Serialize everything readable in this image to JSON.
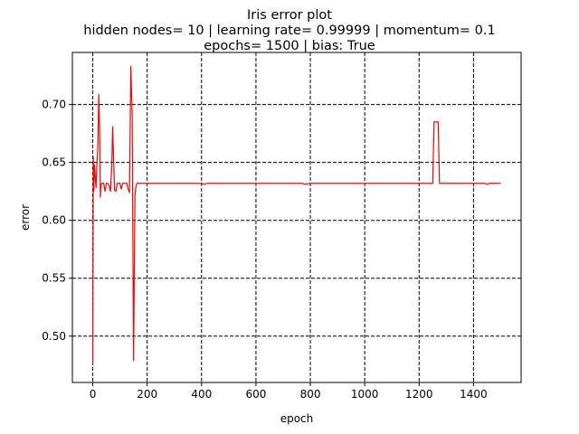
{
  "chart_data": {
    "type": "line",
    "title_lines": [
      "Iris error plot",
      "hidden nodes= 10 | learning rate= 0.99999 | momentum= 0.1",
      "epochs= 1500 | bias: True"
    ],
    "xlabel": "epoch",
    "ylabel": "error",
    "xlim": [
      -75,
      1575
    ],
    "ylim": [
      0.46,
      0.745
    ],
    "xticks": [
      0,
      200,
      400,
      600,
      800,
      1000,
      1200,
      1400
    ],
    "yticks": [
      0.5,
      0.55,
      0.6,
      0.65,
      0.7
    ],
    "ytick_labels": [
      "0.50",
      "0.55",
      "0.60",
      "0.65",
      "0.70"
    ],
    "grid": true,
    "grid_style": "dashed",
    "series": [
      {
        "color": "#ff0000",
        "x": [
          0,
          2,
          4,
          6,
          8,
          10,
          12,
          15,
          18,
          20,
          22,
          25,
          28,
          30,
          33,
          36,
          40,
          45,
          50,
          55,
          60,
          65,
          70,
          73,
          77,
          80,
          85,
          90,
          95,
          100,
          105,
          110,
          115,
          120,
          125,
          130,
          135,
          140,
          145,
          150,
          155,
          158,
          162,
          168,
          175,
          200,
          300,
          400,
          410,
          420,
          500,
          600,
          700,
          770,
          780,
          800,
          900,
          1000,
          1100,
          1150,
          1200,
          1240,
          1250,
          1255,
          1260,
          1265,
          1270,
          1275,
          1280,
          1300,
          1400,
          1440,
          1450,
          1460,
          1480,
          1500
        ],
        "y": [
          0.475,
          0.655,
          0.625,
          0.648,
          0.642,
          0.635,
          0.628,
          0.648,
          0.66,
          0.68,
          0.709,
          0.68,
          0.62,
          0.63,
          0.632,
          0.632,
          0.632,
          0.625,
          0.632,
          0.632,
          0.63,
          0.625,
          0.648,
          0.681,
          0.65,
          0.626,
          0.625,
          0.632,
          0.632,
          0.632,
          0.627,
          0.632,
          0.632,
          0.632,
          0.632,
          0.627,
          0.624,
          0.733,
          0.69,
          0.479,
          0.62,
          0.628,
          0.632,
          0.632,
          0.632,
          0.632,
          0.632,
          0.632,
          0.631,
          0.632,
          0.632,
          0.632,
          0.632,
          0.632,
          0.631,
          0.632,
          0.632,
          0.632,
          0.632,
          0.632,
          0.632,
          0.632,
          0.632,
          0.685,
          0.685,
          0.685,
          0.685,
          0.632,
          0.632,
          0.632,
          0.632,
          0.632,
          0.631,
          0.632,
          0.632,
          0.632
        ]
      }
    ]
  }
}
